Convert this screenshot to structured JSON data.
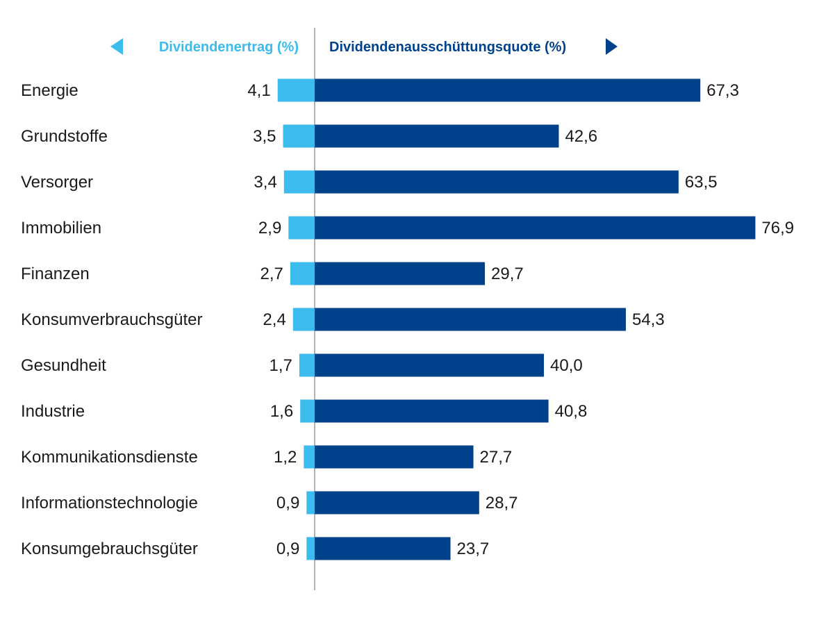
{
  "chart_data": {
    "type": "bar",
    "title": "",
    "xlabel": "",
    "ylabel": "",
    "categories": [
      "Energie",
      "Grundstoffe",
      "Versorger",
      "Immobilien",
      "Finanzen",
      "Konsumverbrauchsgüter",
      "Gesundheit",
      "Industrie",
      "Kommunikationsdienste",
      "Informationstechnologie",
      "Konsumgebrauchsgüter"
    ],
    "series": [
      {
        "name": "Dividendenertrag (%)",
        "color": "#3bbcec",
        "direction": "left",
        "values": [
          4.1,
          3.5,
          3.4,
          2.9,
          2.7,
          2.4,
          1.7,
          1.6,
          1.2,
          0.9,
          0.9
        ],
        "labels": [
          "4,1",
          "3,5",
          "3,4",
          "2,9",
          "2,7",
          "2,4",
          "1,7",
          "1,6",
          "1,2",
          "0,9",
          "0,9"
        ]
      },
      {
        "name": "Dividendenausschüttungsquote (%)",
        "color": "#00418c",
        "direction": "right",
        "values": [
          67.3,
          42.6,
          63.5,
          76.9,
          29.7,
          54.3,
          40.0,
          40.8,
          27.7,
          28.7,
          23.7
        ],
        "labels": [
          "67,3",
          "42,6",
          "63,5",
          "76,9",
          "29,7",
          "54,3",
          "40,0",
          "40,8",
          "27,7",
          "28,7",
          "23,7"
        ]
      }
    ],
    "legend": {
      "left_label": "Dividendenertrag (%)",
      "right_label": "Dividendenausschüttungsquote (%)",
      "placement": "top"
    }
  }
}
